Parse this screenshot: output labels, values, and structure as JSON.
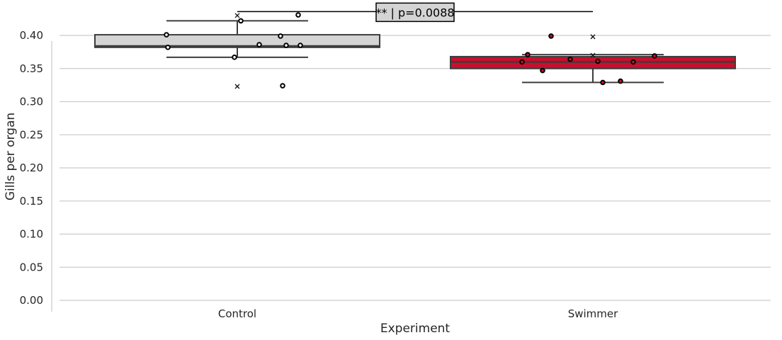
{
  "chart_data": {
    "type": "box",
    "xlabel": "Experiment",
    "ylabel": "Gills per organ",
    "ylim": [
      0,
      0.4
    ],
    "yticks": [
      0.0,
      0.05,
      0.1,
      0.15,
      0.2,
      0.25,
      0.3,
      0.35,
      0.4
    ],
    "ytick_labels": [
      "0.00",
      "0.05",
      "0.10",
      "0.15",
      "0.20",
      "0.25",
      "0.30",
      "0.35",
      "0.40"
    ],
    "grid": "horizontal",
    "categories": [
      "Control",
      "Swimmer"
    ],
    "groups": [
      {
        "name": "Control",
        "color": "#d4d4d4",
        "point_fill": "#ffffff",
        "q1": 0.382,
        "median": 0.384,
        "q3": 0.401,
        "whisker_low": 0.367,
        "whisker_high": 0.422,
        "mean": 0.43,
        "points": [
          0.401,
          0.382,
          0.367,
          0.422,
          0.386,
          0.399,
          0.385,
          0.385,
          0.431,
          0.324
        ],
        "outliers": [
          0.323
        ]
      },
      {
        "name": "Swimmer",
        "color": "#c8102e",
        "point_fill": "#c8102e",
        "q1": 0.35,
        "median": 0.36,
        "q3": 0.368,
        "whisker_low": 0.329,
        "whisker_high": 0.371,
        "mean": 0.37,
        "points": [
          0.36,
          0.371,
          0.347,
          0.399,
          0.364,
          0.329,
          0.361,
          0.331,
          0.36,
          0.369
        ],
        "outliers": [
          0.398
        ]
      }
    ],
    "annotation": {
      "text": "** | p=0.0088",
      "between": [
        "Control",
        "Swimmer"
      ],
      "y": 0.436
    }
  },
  "colors": {
    "grid": "#cccccc",
    "axis": "#cccccc",
    "box_edge": "#3d3d3d",
    "annotation_fill": "#d4d4d4"
  }
}
